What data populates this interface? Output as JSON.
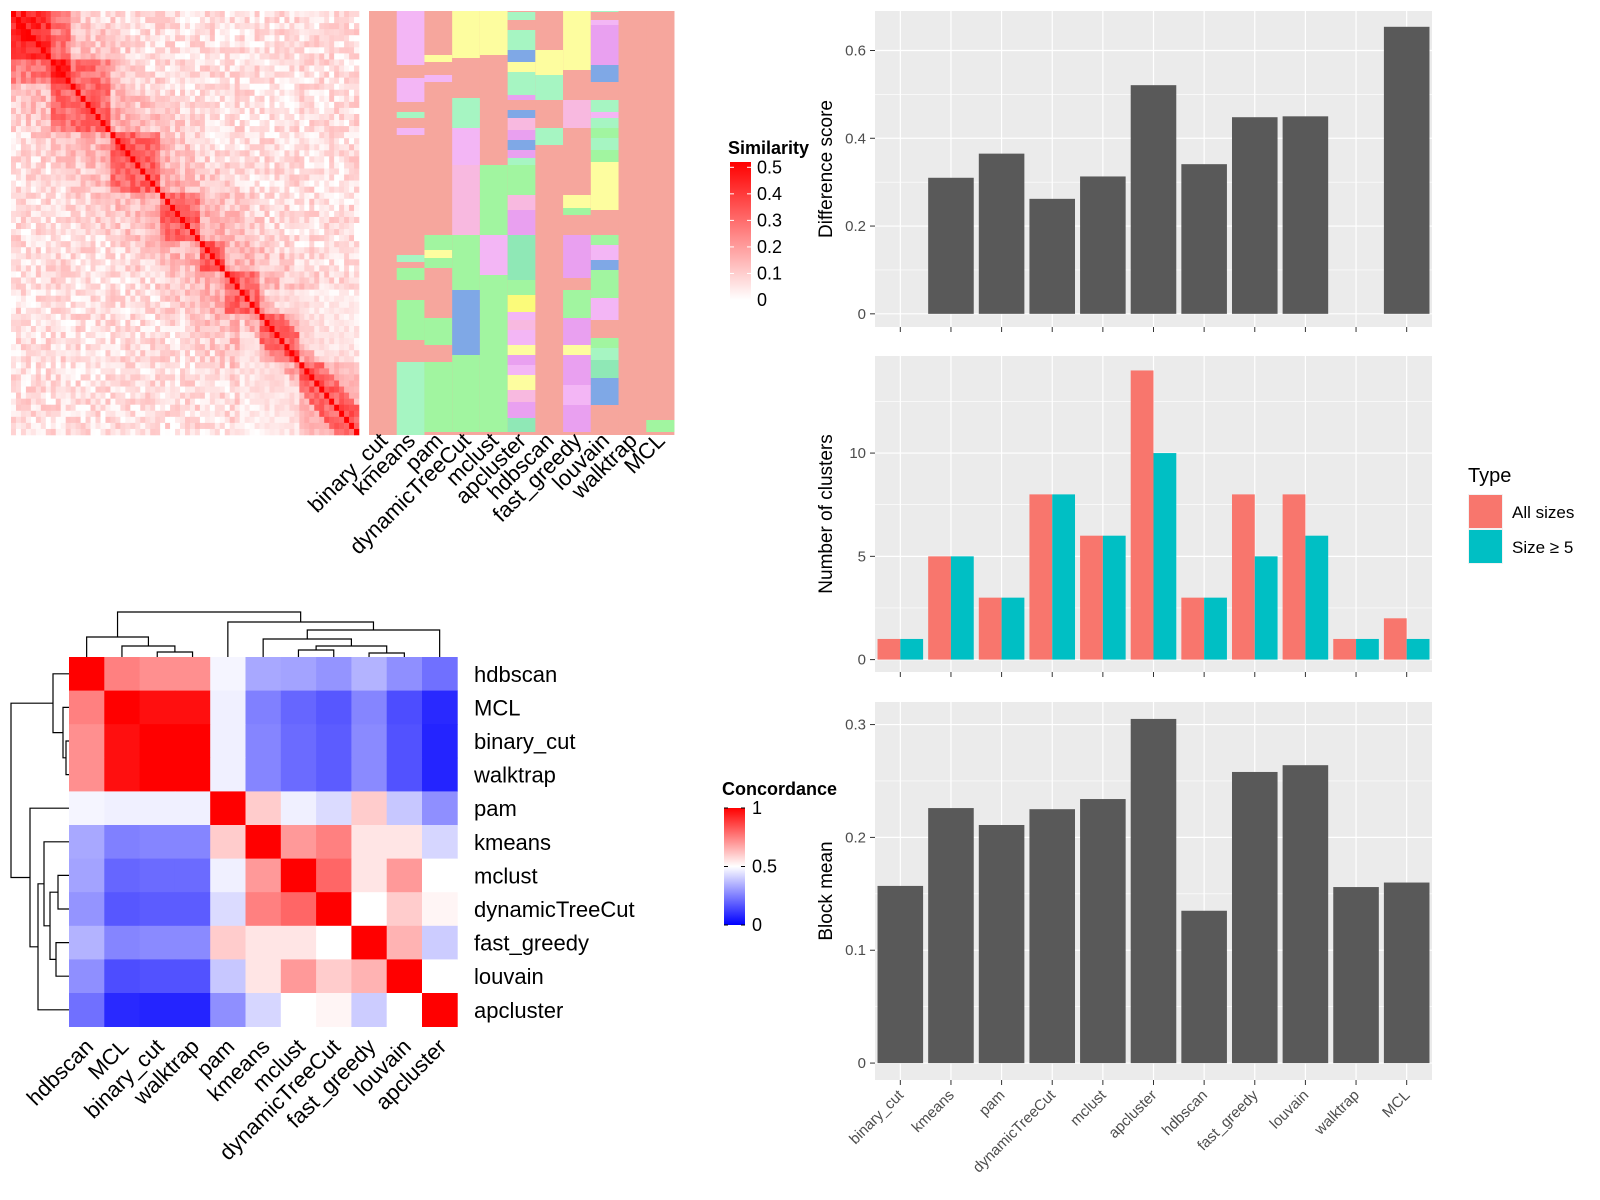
{
  "chart_data": [
    {
      "id": "similarity_heatmap",
      "type": "heatmap",
      "title": "",
      "legend_title": "Similarity",
      "legend_ticks": [
        0,
        0.1,
        0.2,
        0.3,
        0.4,
        0.5
      ],
      "colors": {
        "low": "#ffffff",
        "high": "#ff0000"
      },
      "annotation_columns": [
        "binary_cut",
        "kmeans",
        "pam",
        "dynamicTreeCut",
        "mclust",
        "apcluster",
        "hdbscan",
        "fast_greedy",
        "louvain",
        "walktrap",
        "MCL"
      ]
    },
    {
      "id": "concordance_heatmap",
      "type": "heatmap",
      "legend_title": "Concordance",
      "legend_ticks": [
        0,
        0.5,
        1
      ],
      "colors": {
        "low": "#0000ff",
        "mid": "#ffffff",
        "high": "#ff0000"
      },
      "row_labels": [
        "hdbscan",
        "MCL",
        "binary_cut",
        "walktrap",
        "pam",
        "kmeans",
        "mclust",
        "dynamicTreeCut",
        "fast_greedy",
        "louvain",
        "apcluster"
      ],
      "col_labels": [
        "hdbscan",
        "MCL",
        "binary_cut",
        "walktrap",
        "pam",
        "kmeans",
        "mclust",
        "dynamicTreeCut",
        "fast_greedy",
        "louvain",
        "apcluster"
      ],
      "values": [
        [
          1.0,
          0.75,
          0.72,
          0.72,
          0.48,
          0.33,
          0.32,
          0.29,
          0.35,
          0.28,
          0.22
        ],
        [
          0.75,
          1.0,
          0.97,
          0.97,
          0.47,
          0.25,
          0.2,
          0.17,
          0.26,
          0.15,
          0.08
        ],
        [
          0.72,
          0.97,
          1.0,
          1.0,
          0.47,
          0.26,
          0.21,
          0.18,
          0.27,
          0.16,
          0.07
        ],
        [
          0.72,
          0.97,
          1.0,
          1.0,
          0.47,
          0.26,
          0.21,
          0.18,
          0.27,
          0.16,
          0.07
        ],
        [
          0.48,
          0.47,
          0.47,
          0.47,
          1.0,
          0.6,
          0.47,
          0.43,
          0.6,
          0.39,
          0.28
        ],
        [
          0.33,
          0.25,
          0.26,
          0.26,
          0.6,
          1.0,
          0.7,
          0.75,
          0.55,
          0.55,
          0.42
        ],
        [
          0.32,
          0.2,
          0.21,
          0.21,
          0.47,
          0.7,
          1.0,
          0.8,
          0.55,
          0.7,
          0.5
        ],
        [
          0.29,
          0.17,
          0.18,
          0.18,
          0.43,
          0.75,
          0.8,
          1.0,
          0.5,
          0.6,
          0.52
        ],
        [
          0.35,
          0.26,
          0.27,
          0.27,
          0.6,
          0.55,
          0.55,
          0.5,
          1.0,
          0.65,
          0.4
        ],
        [
          0.28,
          0.15,
          0.16,
          0.16,
          0.39,
          0.55,
          0.7,
          0.6,
          0.65,
          1.0,
          0.5
        ],
        [
          0.22,
          0.08,
          0.07,
          0.07,
          0.28,
          0.42,
          0.5,
          0.52,
          0.4,
          0.5,
          1.0
        ]
      ]
    },
    {
      "id": "difference_score",
      "type": "bar",
      "categories": [
        "binary_cut",
        "kmeans",
        "pam",
        "dynamicTreeCut",
        "mclust",
        "apcluster",
        "hdbscan",
        "fast_greedy",
        "louvain",
        "walktrap",
        "MCL"
      ],
      "values": [
        0,
        0.31,
        0.365,
        0.262,
        0.313,
        0.521,
        0.341,
        0.448,
        0.45,
        0,
        0.654
      ],
      "ylabel": "Difference score",
      "ylim": [
        -0.03,
        0.69
      ],
      "yticks": [
        0.0,
        0.2,
        0.4,
        0.6
      ],
      "grid": true
    },
    {
      "id": "number_of_clusters",
      "type": "bar",
      "categories": [
        "binary_cut",
        "kmeans",
        "pam",
        "dynamicTreeCut",
        "mclust",
        "apcluster",
        "hdbscan",
        "fast_greedy",
        "louvain",
        "walktrap",
        "MCL"
      ],
      "series": [
        {
          "name": "All sizes",
          "color": "#F8766D",
          "values": [
            1,
            5,
            3,
            8,
            6,
            14,
            3,
            8,
            8,
            1,
            2
          ]
        },
        {
          "name": "Size ≥ 5",
          "color": "#00BFC4",
          "values": [
            1,
            5,
            3,
            8,
            6,
            10,
            3,
            5,
            6,
            1,
            1
          ]
        }
      ],
      "ylabel": "Number of clusters",
      "ylim": [
        -0.6,
        14.7
      ],
      "yticks": [
        0,
        5,
        10
      ],
      "legend": {
        "title": "Type",
        "placement": "right"
      },
      "grid": true
    },
    {
      "id": "block_mean",
      "type": "bar",
      "categories": [
        "binary_cut",
        "kmeans",
        "pam",
        "dynamicTreeCut",
        "mclust",
        "apcluster",
        "hdbscan",
        "fast_greedy",
        "louvain",
        "walktrap",
        "MCL"
      ],
      "values": [
        0.157,
        0.226,
        0.211,
        0.225,
        0.234,
        0.305,
        0.135,
        0.258,
        0.264,
        0.156,
        0.16
      ],
      "ylabel": "Block mean",
      "ylim": [
        -0.015,
        0.32
      ],
      "yticks": [
        0.0,
        0.1,
        0.2,
        0.3
      ],
      "grid": true
    }
  ]
}
